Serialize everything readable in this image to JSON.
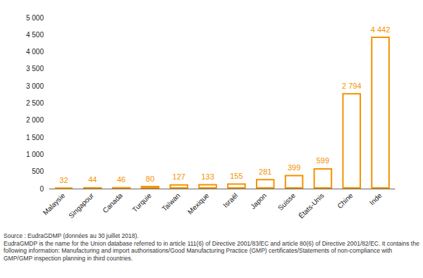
{
  "chart_data": {
    "type": "bar",
    "categories": [
      "Malaysie",
      "Singapour",
      "Canada",
      "Turquie",
      "Taïwan",
      "Mexique",
      "Israël",
      "Japon",
      "Suisse",
      "États-Unis",
      "Chine",
      "Inde"
    ],
    "values": [
      32,
      44,
      46,
      80,
      127,
      133,
      155,
      281,
      399,
      599,
      2794,
      4442
    ],
    "value_labels": [
      "32",
      "44",
      "46",
      "80",
      "127",
      "133",
      "155",
      "281",
      "399",
      "599",
      "2 794",
      "4 442"
    ],
    "color": "#f39200",
    "data_labels": true,
    "grid": false,
    "ylim": [
      0,
      5000
    ],
    "yticks": [
      0,
      {
        "value": 500,
        "label": "500"
      },
      {
        "value": 1000,
        "label": "1 000"
      },
      {
        "value": 1500,
        "label": "1 500"
      },
      {
        "value": 2000,
        "label": "2 000"
      },
      {
        "value": 2500,
        "label": "2 500"
      },
      {
        "value": 3000,
        "label": "3 000"
      },
      {
        "value": 3500,
        "label": "3 500"
      },
      {
        "value": 4000,
        "label": "4 000"
      },
      {
        "value": 4500,
        "label": "4 500"
      },
      {
        "value": 5000,
        "label": "5 000"
      }
    ],
    "notes": [
      "Source : EudraGDMP (données au 30 juillet 2018).",
      "EudraGMDP is the name for the Union database referred to in article 111(6) of Directive 2001/83/EC and article 80(6) of Directive 2001/82/EC. It contains the following information: Manufacturing and import authorisations/Good Manufacturing Practice (GMP) certificates/Statements of non-compliance with GMP/GMP inspection planning in third countries."
    ]
  }
}
